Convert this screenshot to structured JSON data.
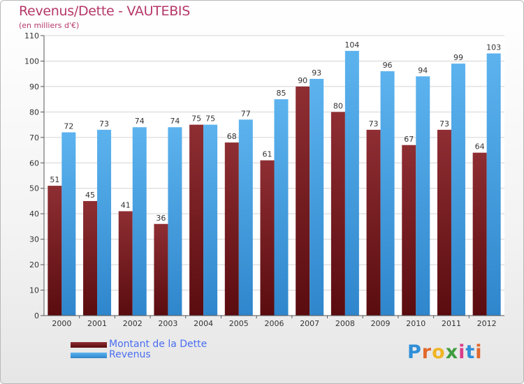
{
  "header": {
    "title": "Revenus/Dette - VAUTEBIS",
    "subtitle": "(en milliers d'€)"
  },
  "colors": {
    "debt_bar": "#7a1f22",
    "revenue_bar": "#4aa3e3",
    "text_accent": "#b5386a",
    "legend_text": "#4a6ef0"
  },
  "legend": {
    "debt_label": "Montant de la Dette",
    "revenue_label": "Revenus"
  },
  "logo": {
    "text": "Proxiti",
    "letters": [
      "P",
      "r",
      "o",
      "x",
      "i",
      "t",
      "i"
    ],
    "letter_colors": [
      "#2f8fd8",
      "#e2682c",
      "#f0b526",
      "#3f9d3f",
      "#d83c8a",
      "#2f8fd8",
      "#e2682c"
    ]
  },
  "chart_data": {
    "type": "bar",
    "title": "Revenus/Dette - VAUTEBIS",
    "subtitle": "(en milliers d'€)",
    "xlabel": "",
    "ylabel": "",
    "categories": [
      "2000",
      "2001",
      "2002",
      "2003",
      "2004",
      "2005",
      "2006",
      "2007",
      "2008",
      "2009",
      "2010",
      "2011",
      "2012"
    ],
    "series": [
      {
        "name": "Montant de la Dette",
        "color": "#7a1f22",
        "values": [
          51,
          45,
          41,
          36,
          75,
          68,
          61,
          90,
          80,
          73,
          67,
          73,
          64
        ]
      },
      {
        "name": "Revenus",
        "color": "#4aa3e3",
        "values": [
          72,
          73,
          74,
          74,
          75,
          77,
          85,
          93,
          104,
          96,
          94,
          99,
          103
        ]
      }
    ],
    "ylim": [
      0,
      110
    ],
    "yticks": [
      0,
      10,
      20,
      30,
      40,
      50,
      60,
      70,
      80,
      90,
      100,
      110
    ],
    "grid": true,
    "data_labels": true,
    "legend_position": "bottom-left"
  }
}
